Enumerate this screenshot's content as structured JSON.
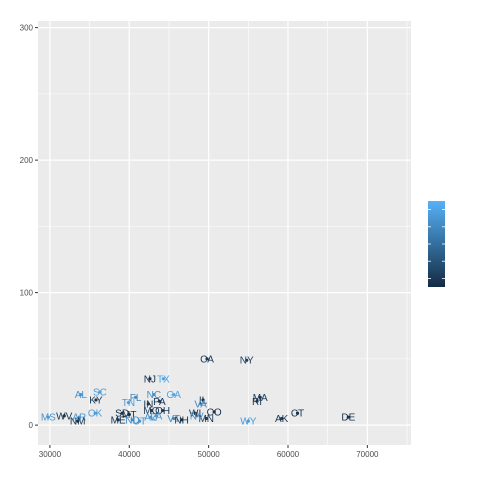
{
  "chart_data": {
    "type": "scatter",
    "title": "",
    "xlabel": "",
    "ylabel": "",
    "xlim": [
      28500,
      75500
    ],
    "ylim": [
      -15,
      305
    ],
    "x_ticks": [
      30000,
      40000,
      50000,
      60000,
      70000
    ],
    "x_tick_labels": [
      "30000",
      "40000",
      "50000",
      "60000",
      "70000"
    ],
    "x_minor_ticks": [
      35000,
      45000,
      55000,
      65000,
      75000
    ],
    "y_ticks": [
      0,
      100,
      200,
      300
    ],
    "y_tick_labels": [
      "0",
      "100",
      "200",
      "300"
    ],
    "y_minor_ticks": [
      50,
      150,
      250
    ],
    "grid": true,
    "legend": "right",
    "legend_type": "colorbar",
    "colors": {
      "panel_background": "#ebebeb",
      "grid": "#ffffff",
      "dark": "#132b43",
      "light": "#56b1f7"
    },
    "points": [
      {
        "label": "CA",
        "x": 49800,
        "y": 50,
        "c": 0.1
      },
      {
        "label": "NY",
        "x": 54800,
        "y": 49,
        "c": 0.15
      },
      {
        "label": "NJ",
        "x": 42600,
        "y": 35,
        "c": 0.05
      },
      {
        "label": "TX",
        "x": 44300,
        "y": 35,
        "c": 0.9
      },
      {
        "label": "AL",
        "x": 33900,
        "y": 23,
        "c": 0.8
      },
      {
        "label": "SC",
        "x": 36300,
        "y": 25,
        "c": 0.85
      },
      {
        "label": "NC",
        "x": 43100,
        "y": 23,
        "c": 0.75
      },
      {
        "label": "GA",
        "x": 45600,
        "y": 23,
        "c": 0.9
      },
      {
        "label": "FL",
        "x": 40800,
        "y": 21,
        "c": 0.7
      },
      {
        "label": "MA",
        "x": 56500,
        "y": 21,
        "c": 0.1
      },
      {
        "label": "KY",
        "x": 35800,
        "y": 19,
        "c": 0.1
      },
      {
        "label": "TN",
        "x": 39900,
        "y": 17,
        "c": 0.85
      },
      {
        "label": "IN",
        "x": 42400,
        "y": 16,
        "c": 0.1
      },
      {
        "label": "PA",
        "x": 43800,
        "y": 18,
        "c": 0.1
      },
      {
        "label": "IL",
        "x": 49300,
        "y": 19,
        "c": 0.05
      },
      {
        "label": "VA",
        "x": 49000,
        "y": 16,
        "c": 0.7
      },
      {
        "label": "RI",
        "x": 56100,
        "y": 18,
        "c": 0.1
      },
      {
        "label": "MS",
        "x": 29800,
        "y": 6,
        "c": 0.8
      },
      {
        "label": "WV",
        "x": 31800,
        "y": 7,
        "c": 0.05
      },
      {
        "label": "AR",
        "x": 33700,
        "y": 6,
        "c": 0.8
      },
      {
        "label": "OK",
        "x": 35700,
        "y": 9,
        "c": 0.85
      },
      {
        "label": "NM",
        "x": 33500,
        "y": 3,
        "c": 0.05
      },
      {
        "label": "SD",
        "x": 39100,
        "y": 9,
        "c": 0.05
      },
      {
        "label": "MT",
        "x": 40000,
        "y": 8,
        "c": 0.05
      },
      {
        "label": "MO",
        "x": 42800,
        "y": 11,
        "c": 0.1
      },
      {
        "label": "OH",
        "x": 44200,
        "y": 11,
        "c": 0.1
      },
      {
        "label": "ME",
        "x": 38600,
        "y": 4,
        "c": 0.05
      },
      {
        "label": "ND",
        "x": 40400,
        "y": 4,
        "c": 0.7
      },
      {
        "label": "UT",
        "x": 41300,
        "y": 3,
        "c": 0.8
      },
      {
        "label": "AZ",
        "x": 42700,
        "y": 6,
        "c": 0.8
      },
      {
        "label": "LA",
        "x": 43400,
        "y": 7,
        "c": 0.8
      },
      {
        "label": "VT",
        "x": 45600,
        "y": 5,
        "c": 0.7
      },
      {
        "label": "NH",
        "x": 46600,
        "y": 4,
        "c": 0.05
      },
      {
        "label": "WI",
        "x": 48300,
        "y": 9,
        "c": 0.05
      },
      {
        "label": "MN",
        "x": 49700,
        "y": 5,
        "c": 0.1
      },
      {
        "label": "CO",
        "x": 50700,
        "y": 10,
        "c": 0.05
      },
      {
        "label": "NV",
        "x": 48500,
        "y": 7,
        "c": 0.75
      },
      {
        "label": "WY",
        "x": 55000,
        "y": 3,
        "c": 0.85
      },
      {
        "label": "AK",
        "x": 59200,
        "y": 5,
        "c": 0.1
      },
      {
        "label": "CT",
        "x": 61200,
        "y": 9,
        "c": 0.05
      },
      {
        "label": "DE",
        "x": 67600,
        "y": 6,
        "c": 0.05
      }
    ]
  }
}
